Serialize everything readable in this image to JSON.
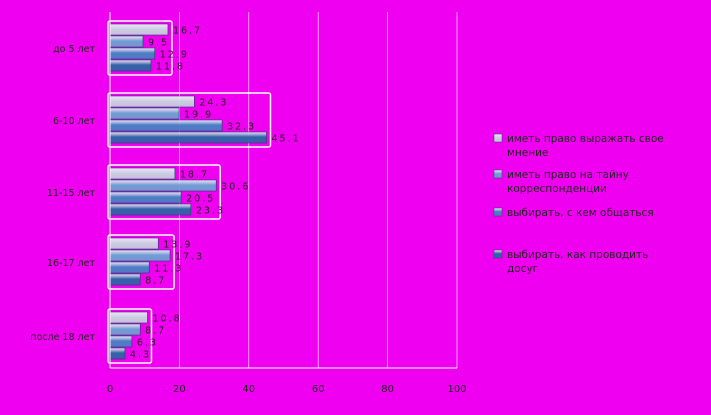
{
  "chart_data": {
    "type": "bar",
    "orientation": "horizontal",
    "categories": [
      "до 5 лет",
      "6-10 лет",
      "11-15 лет",
      "16-17 лет",
      "после 18 лет"
    ],
    "series": [
      {
        "name": "иметь право выражать свое мнение",
        "values": [
          16.7,
          24.3,
          18.7,
          13.9,
          10.8
        ]
      },
      {
        "name": "иметь право на тайну корреспонденции",
        "values": [
          9.5,
          19.9,
          30.6,
          17.3,
          8.7
        ]
      },
      {
        "name": "выбирать, с кем общаться",
        "values": [
          12.9,
          32.3,
          20.5,
          11.3,
          6.3
        ]
      },
      {
        "name": "выбирать, как проводить досуг",
        "values": [
          11.8,
          45.1,
          23.3,
          8.7,
          4.3
        ]
      }
    ],
    "value_labels": [
      [
        "16.7",
        "9.5",
        "12.9",
        "11.8"
      ],
      [
        "24.3",
        "19.9",
        "32.3",
        "45.1"
      ],
      [
        "18.7",
        "30.6",
        "20.5",
        "23.3"
      ],
      [
        "13.9",
        "17.3",
        "11.3",
        "8.7"
      ],
      [
        "10.8",
        "8.7",
        "6.3",
        "4.3"
      ]
    ],
    "xlim": [
      0,
      100
    ],
    "xticks": [
      "0",
      "20",
      "40",
      "60",
      "80",
      "100"
    ],
    "grid": true,
    "legend": "right",
    "colors": [
      "#c8d0e0",
      "#6f9fd2",
      "#4a80c4",
      "#2f64a6"
    ],
    "background": "#f000f0"
  }
}
